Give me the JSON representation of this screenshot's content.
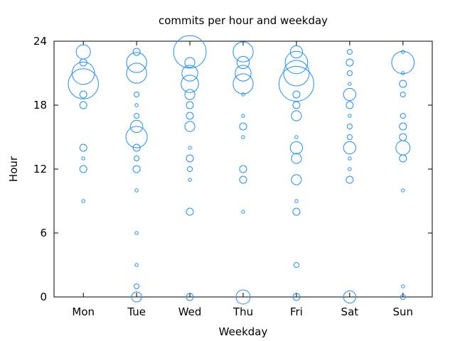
{
  "chart_data": {
    "type": "scatter",
    "title": "commits per hour and weekday",
    "xlabel": "Weekday",
    "ylabel": "Hour",
    "categories": [
      "Mon",
      "Tue",
      "Wed",
      "Thu",
      "Fri",
      "Sat",
      "Sun"
    ],
    "xlim": [
      -0.55,
      6.55
    ],
    "ylim": [
      0,
      24
    ],
    "yticks": [
      "0",
      "6",
      "12",
      "18",
      "24"
    ],
    "grid": false,
    "legend": "none",
    "marker_color": "#1f8fff",
    "size_unit": "relative commit count (bubble area)",
    "points": [
      {
        "day": "Mon",
        "hour": 23,
        "count": 4
      },
      {
        "day": "Mon",
        "hour": 22,
        "count": 1
      },
      {
        "day": "Mon",
        "hour": 21,
        "count": 10
      },
      {
        "day": "Mon",
        "hour": 20,
        "count": 18
      },
      {
        "day": "Mon",
        "hour": 19,
        "count": 1
      },
      {
        "day": "Mon",
        "hour": 18,
        "count": 1
      },
      {
        "day": "Mon",
        "hour": 14,
        "count": 1
      },
      {
        "day": "Mon",
        "hour": 13,
        "count": 0.2
      },
      {
        "day": "Mon",
        "hour": 12,
        "count": 1
      },
      {
        "day": "Mon",
        "hour": 9,
        "count": 0.2
      },
      {
        "day": "Tue",
        "hour": 23,
        "count": 1
      },
      {
        "day": "Tue",
        "hour": 22,
        "count": 8
      },
      {
        "day": "Tue",
        "hour": 21,
        "count": 8
      },
      {
        "day": "Tue",
        "hour": 19,
        "count": 0.5
      },
      {
        "day": "Tue",
        "hour": 18,
        "count": 0.2
      },
      {
        "day": "Tue",
        "hour": 17,
        "count": 0.5
      },
      {
        "day": "Tue",
        "hour": 16,
        "count": 3
      },
      {
        "day": "Tue",
        "hour": 15,
        "count": 9
      },
      {
        "day": "Tue",
        "hour": 14,
        "count": 1
      },
      {
        "day": "Tue",
        "hour": 13,
        "count": 0.5
      },
      {
        "day": "Tue",
        "hour": 12,
        "count": 1
      },
      {
        "day": "Tue",
        "hour": 10,
        "count": 0.2
      },
      {
        "day": "Tue",
        "hour": 6,
        "count": 0.2
      },
      {
        "day": "Tue",
        "hour": 3,
        "count": 0.2
      },
      {
        "day": "Tue",
        "hour": 1,
        "count": 0.5
      },
      {
        "day": "Tue",
        "hour": 0,
        "count": 2
      },
      {
        "day": "Wed",
        "hour": 23,
        "count": 21
      },
      {
        "day": "Wed",
        "hour": 22,
        "count": 2
      },
      {
        "day": "Wed",
        "hour": 21,
        "count": 5
      },
      {
        "day": "Wed",
        "hour": 20,
        "count": 6
      },
      {
        "day": "Wed",
        "hour": 19,
        "count": 2
      },
      {
        "day": "Wed",
        "hour": 18,
        "count": 1
      },
      {
        "day": "Wed",
        "hour": 17,
        "count": 1
      },
      {
        "day": "Wed",
        "hour": 16,
        "count": 2
      },
      {
        "day": "Wed",
        "hour": 14,
        "count": 0.2
      },
      {
        "day": "Wed",
        "hour": 13,
        "count": 1
      },
      {
        "day": "Wed",
        "hour": 12,
        "count": 0.5
      },
      {
        "day": "Wed",
        "hour": 11,
        "count": 0.2
      },
      {
        "day": "Wed",
        "hour": 8,
        "count": 1
      },
      {
        "day": "Wed",
        "hour": 0,
        "count": 1
      },
      {
        "day": "Thu",
        "hour": 23,
        "count": 8
      },
      {
        "day": "Thu",
        "hour": 22,
        "count": 3
      },
      {
        "day": "Thu",
        "hour": 21,
        "count": 5
      },
      {
        "day": "Thu",
        "hour": 20,
        "count": 8
      },
      {
        "day": "Thu",
        "hour": 19,
        "count": 0.2
      },
      {
        "day": "Thu",
        "hour": 17,
        "count": 0.2
      },
      {
        "day": "Thu",
        "hour": 16,
        "count": 1
      },
      {
        "day": "Thu",
        "hour": 15,
        "count": 0.2
      },
      {
        "day": "Thu",
        "hour": 12,
        "count": 1
      },
      {
        "day": "Thu",
        "hour": 11,
        "count": 1
      },
      {
        "day": "Thu",
        "hour": 8,
        "count": 0.2
      },
      {
        "day": "Thu",
        "hour": 0,
        "count": 4
      },
      {
        "day": "Fri",
        "hour": 23,
        "count": 3
      },
      {
        "day": "Fri",
        "hour": 22,
        "count": 10
      },
      {
        "day": "Fri",
        "hour": 21,
        "count": 13
      },
      {
        "day": "Fri",
        "hour": 20,
        "count": 24
      },
      {
        "day": "Fri",
        "hour": 19,
        "count": 1
      },
      {
        "day": "Fri",
        "hour": 18,
        "count": 1
      },
      {
        "day": "Fri",
        "hour": 17,
        "count": 2
      },
      {
        "day": "Fri",
        "hour": 15,
        "count": 0.2
      },
      {
        "day": "Fri",
        "hour": 14,
        "count": 3
      },
      {
        "day": "Fri",
        "hour": 13,
        "count": 2
      },
      {
        "day": "Fri",
        "hour": 11,
        "count": 2
      },
      {
        "day": "Fri",
        "hour": 9,
        "count": 0.2
      },
      {
        "day": "Fri",
        "hour": 8,
        "count": 1
      },
      {
        "day": "Fri",
        "hour": 3,
        "count": 0.5
      },
      {
        "day": "Fri",
        "hour": 0,
        "count": 1
      },
      {
        "day": "Sat",
        "hour": 23,
        "count": 0.5
      },
      {
        "day": "Sat",
        "hour": 22,
        "count": 1
      },
      {
        "day": "Sat",
        "hour": 21,
        "count": 0.5
      },
      {
        "day": "Sat",
        "hour": 20,
        "count": 0.2
      },
      {
        "day": "Sat",
        "hour": 19,
        "count": 3
      },
      {
        "day": "Sat",
        "hour": 18,
        "count": 1
      },
      {
        "day": "Sat",
        "hour": 17,
        "count": 0.2
      },
      {
        "day": "Sat",
        "hour": 16,
        "count": 0.5
      },
      {
        "day": "Sat",
        "hour": 15,
        "count": 0.5
      },
      {
        "day": "Sat",
        "hour": 14,
        "count": 3
      },
      {
        "day": "Sat",
        "hour": 13,
        "count": 0.2
      },
      {
        "day": "Sat",
        "hour": 12,
        "count": 0.2
      },
      {
        "day": "Sat",
        "hour": 11,
        "count": 1
      },
      {
        "day": "Sat",
        "hour": 0,
        "count": 3
      },
      {
        "day": "Sun",
        "hour": 23,
        "count": 0.2
      },
      {
        "day": "Sun",
        "hour": 22,
        "count": 10
      },
      {
        "day": "Sun",
        "hour": 21,
        "count": 0.2
      },
      {
        "day": "Sun",
        "hour": 20,
        "count": 1
      },
      {
        "day": "Sun",
        "hour": 19,
        "count": 0.5
      },
      {
        "day": "Sun",
        "hour": 17,
        "count": 0.5
      },
      {
        "day": "Sun",
        "hour": 16,
        "count": 1
      },
      {
        "day": "Sun",
        "hour": 15,
        "count": 1
      },
      {
        "day": "Sun",
        "hour": 14,
        "count": 4
      },
      {
        "day": "Sun",
        "hour": 13,
        "count": 1
      },
      {
        "day": "Sun",
        "hour": 10,
        "count": 0.2
      },
      {
        "day": "Sun",
        "hour": 1,
        "count": 0.2
      },
      {
        "day": "Sun",
        "hour": 0,
        "count": 0.5
      }
    ]
  }
}
